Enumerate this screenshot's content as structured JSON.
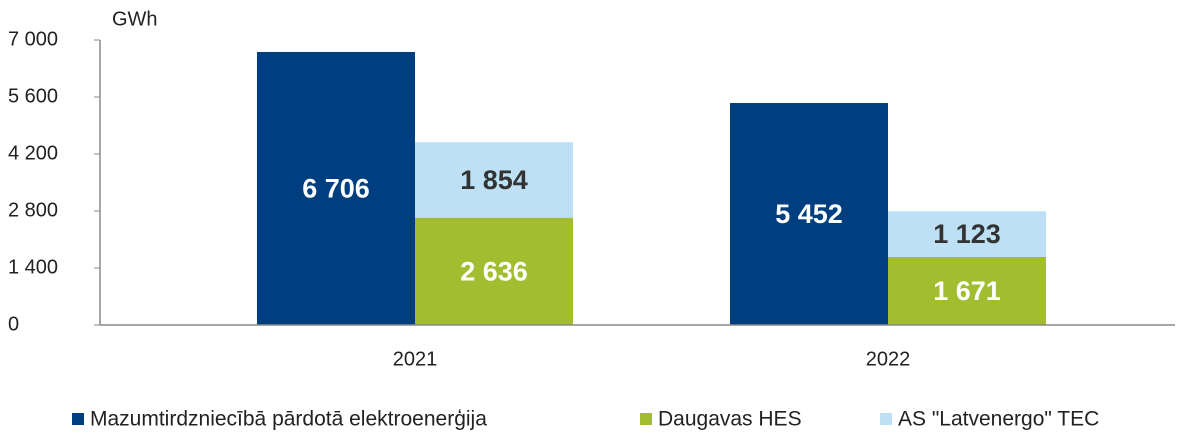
{
  "chart_data": {
    "type": "bar",
    "y_label": "GWh",
    "categories": [
      "2021",
      "2022"
    ],
    "series": [
      {
        "name": "Mazumtirdzniecībā pārdotā elektroenerģija",
        "color": "#003f7f",
        "values": [
          6706,
          5452
        ],
        "value_labels": [
          "6 706",
          "5 452"
        ]
      },
      {
        "name": "Daugavas HES",
        "color": "#a3bd31",
        "values": [
          2636,
          1671
        ],
        "value_labels": [
          "2 636",
          "1 671"
        ]
      },
      {
        "name": "AS \"Latvenergo\" TEC",
        "color": "#bde0f5",
        "values": [
          1854,
          1123
        ],
        "value_labels": [
          "1 854",
          "1 123"
        ]
      }
    ],
    "ylim": [
      0,
      7000
    ],
    "yticks": [
      0,
      {
        "value": 1400,
        "label": "1 400"
      },
      {
        "value": 2800,
        "label": "2 800"
      },
      {
        "value": 4200,
        "label": "4 200"
      },
      {
        "value": 5600,
        "label": "5 600"
      },
      {
        "value": 7000,
        "label": "7 000"
      }
    ],
    "legend": "bottom"
  }
}
